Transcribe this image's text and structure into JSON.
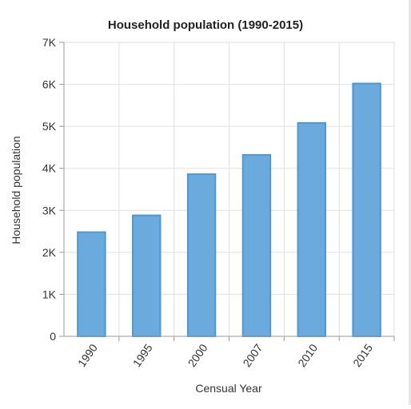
{
  "chart_data": {
    "type": "bar",
    "title": "Household population (1990-2015)",
    "xlabel": "Censual Year",
    "ylabel": "Household population",
    "categories": [
      "1990",
      "1995",
      "2000",
      "2007",
      "2010",
      "2015"
    ],
    "values": [
      2480,
      2880,
      3860,
      4320,
      5080,
      6020
    ],
    "ylim": [
      0,
      7000
    ],
    "yticks": [
      0,
      1000,
      2000,
      3000,
      4000,
      5000,
      6000,
      7000
    ],
    "ytick_labels": [
      "0",
      "1K",
      "2K",
      "3K",
      "4K",
      "5K",
      "6K",
      "7K"
    ],
    "grid": true,
    "legend": "none",
    "colors": {
      "bar": "#6aaadc",
      "bar_edge": "#4f97d3",
      "grid": "#e0e0e0",
      "axis": "#9a9a9a",
      "text": "#333333"
    }
  }
}
